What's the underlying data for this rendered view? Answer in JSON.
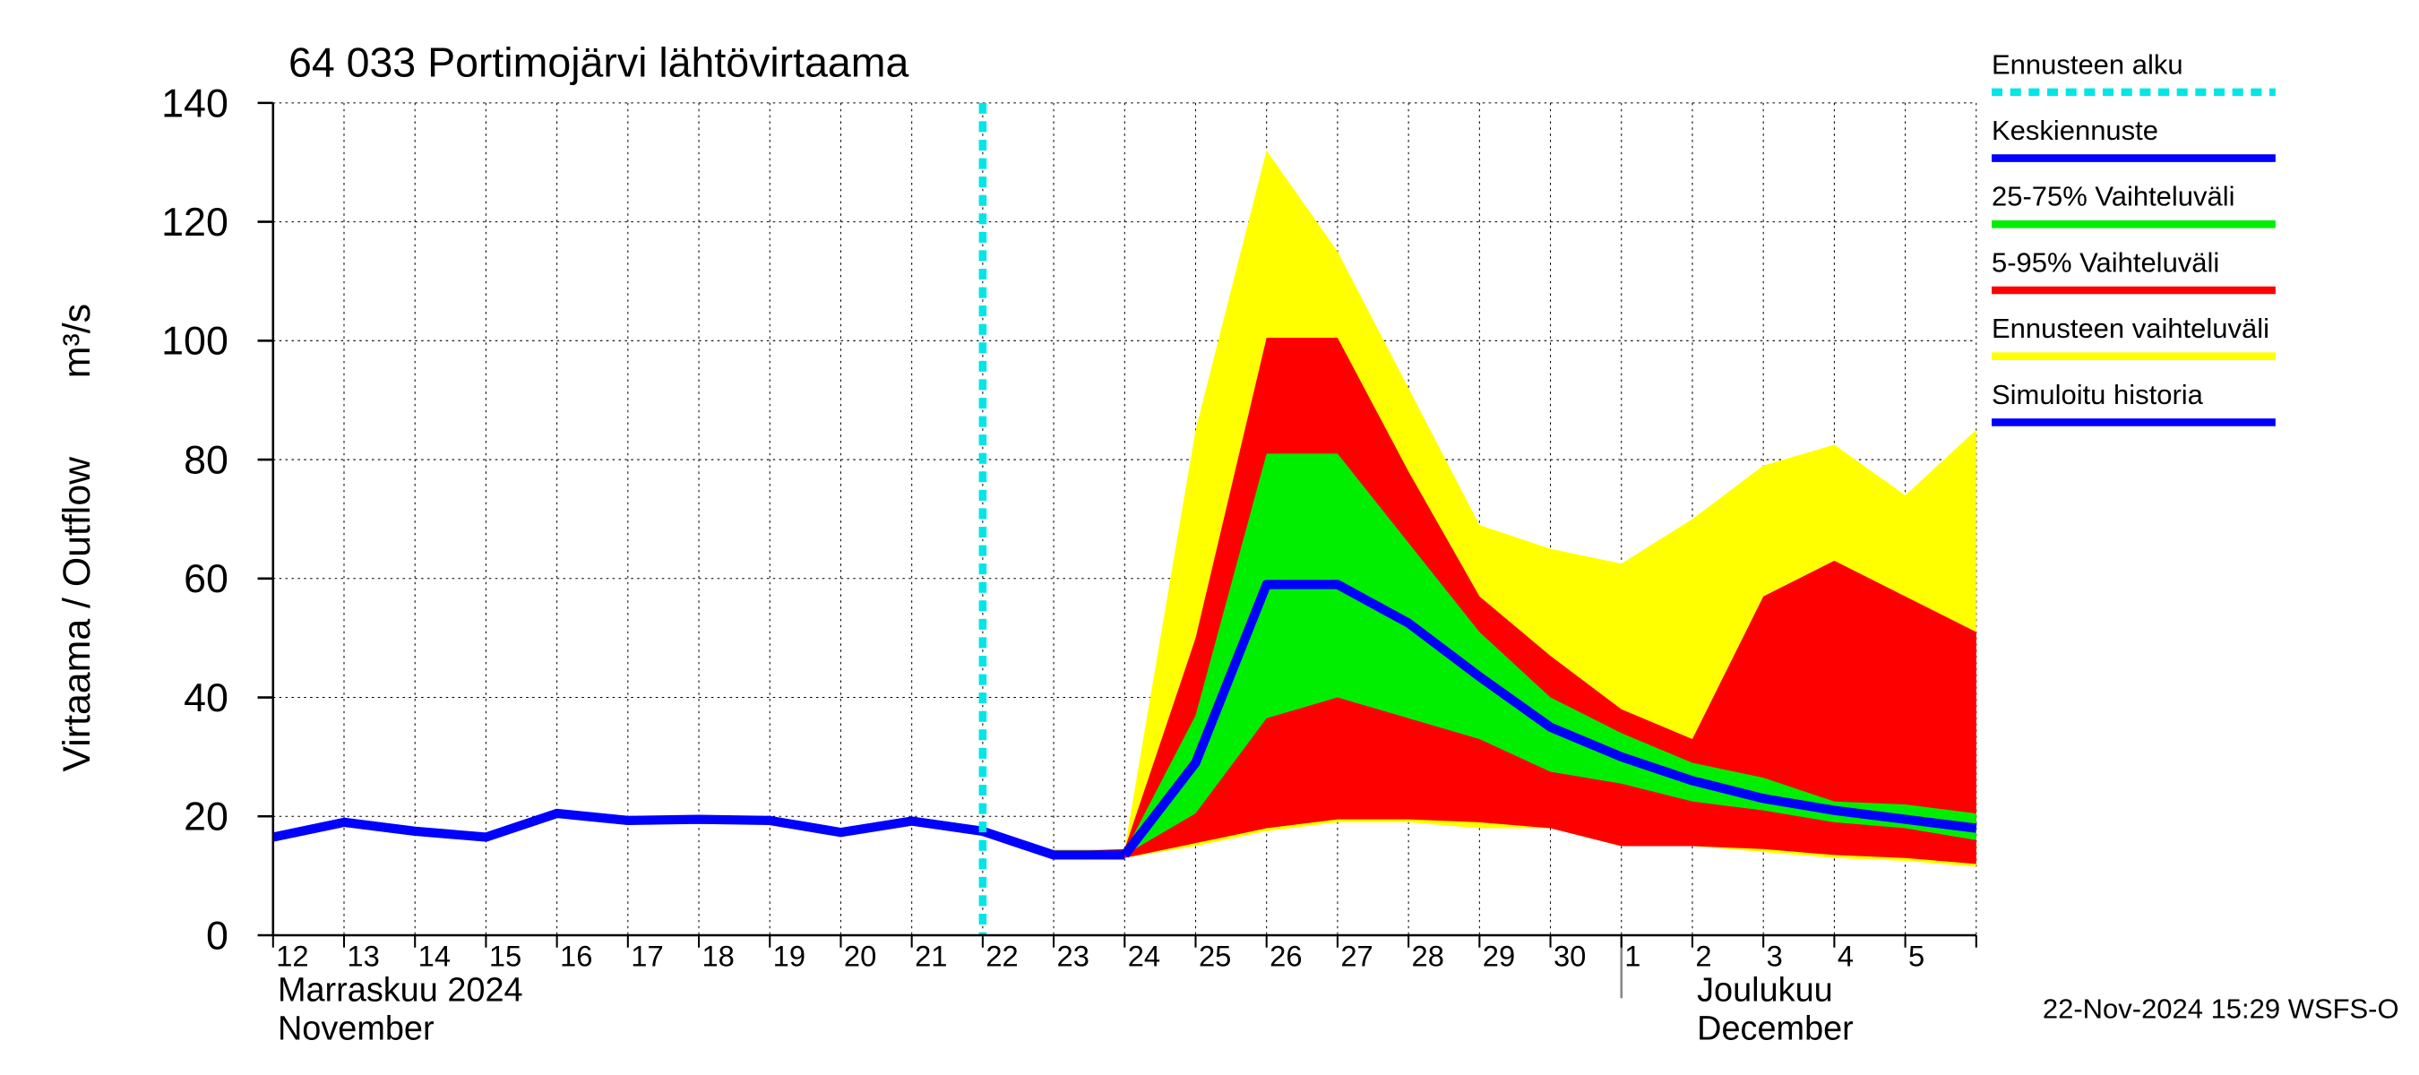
{
  "chart_data": {
    "type": "line",
    "title": "64 033 Portimojärvi lähtövirtaama",
    "y_label": "Virtaama / Outflow",
    "y_unit": "m³/s",
    "month_labels": [
      "Marraskuu 2024",
      "November",
      "Joulukuu",
      "December"
    ],
    "timestamp": "22-Nov-2024 15:29 WSFS-O",
    "categories": [
      "12",
      "13",
      "14",
      "15",
      "16",
      "17",
      "18",
      "19",
      "20",
      "21",
      "22",
      "23",
      "24",
      "25",
      "26",
      "27",
      "28",
      "29",
      "30",
      "1",
      "2",
      "3",
      "4",
      "5",
      null
    ],
    "ylim": [
      0,
      140
    ],
    "yticks": [
      0,
      20,
      40,
      60,
      80,
      100,
      120,
      140
    ],
    "grid": true,
    "forecast_start": {
      "name": "Ennusteen alku",
      "color": "#00e5e5",
      "x": 10
    },
    "series": [
      {
        "name": "Keskiennuste",
        "color": "#0000ff",
        "values": [
          null,
          null,
          null,
          null,
          null,
          null,
          null,
          null,
          null,
          null,
          null,
          null,
          13.5,
          29,
          59,
          59,
          52.5,
          43.5,
          35,
          30,
          26,
          23,
          21,
          19.5,
          18
        ]
      },
      {
        "name": "25-75% Vaihteluväli",
        "color": "#00ee00",
        "values": [
          null,
          null,
          null,
          null,
          null,
          null,
          null,
          null,
          null,
          null,
          null,
          14,
          14,
          37,
          81,
          81,
          66,
          51,
          40,
          34,
          29,
          26.5,
          22.5,
          22,
          20.5
        ],
        "lower": [
          null,
          null,
          null,
          null,
          null,
          null,
          null,
          null,
          null,
          null,
          null,
          13.5,
          13.5,
          20.5,
          36.5,
          40,
          36.5,
          33,
          27.5,
          25.5,
          22.5,
          21,
          19,
          18,
          16
        ]
      },
      {
        "name": "5-95% Vaihteluväli",
        "color": "#ff0000",
        "values": [
          null,
          null,
          null,
          null,
          null,
          null,
          null,
          null,
          null,
          null,
          null,
          14,
          14.5,
          50,
          100.5,
          100.5,
          78,
          57,
          47,
          38,
          33,
          57,
          63,
          57,
          51
        ],
        "lower": [
          null,
          null,
          null,
          null,
          null,
          null,
          null,
          null,
          null,
          null,
          null,
          13.5,
          13,
          15.5,
          18,
          19.5,
          19.5,
          19,
          18,
          15,
          15,
          14.5,
          13.5,
          13,
          12
        ]
      },
      {
        "name": "Ennusteen vaihteluväli",
        "color": "#ffff00",
        "values": [
          null,
          null,
          null,
          null,
          null,
          null,
          null,
          null,
          null,
          null,
          null,
          14.5,
          14.5,
          85,
          132,
          115,
          92,
          69,
          65,
          62.5,
          70,
          79,
          82.5,
          74,
          85
        ],
        "lower": [
          null,
          null,
          null,
          null,
          null,
          null,
          null,
          null,
          null,
          null,
          null,
          13,
          13,
          15,
          17.5,
          19,
          19,
          18,
          18,
          15,
          15,
          14,
          13,
          12.5,
          11.5
        ]
      },
      {
        "name": "Simuloitu historia",
        "color": "#0000ff",
        "values": [
          16.5,
          19,
          17.5,
          16.5,
          20.5,
          19.3,
          19.5,
          19.3,
          17.3,
          19.2,
          17.5,
          13.5,
          13.5,
          null,
          null,
          null,
          null,
          null,
          null,
          null,
          null,
          null,
          null,
          null,
          null
        ]
      }
    ]
  }
}
